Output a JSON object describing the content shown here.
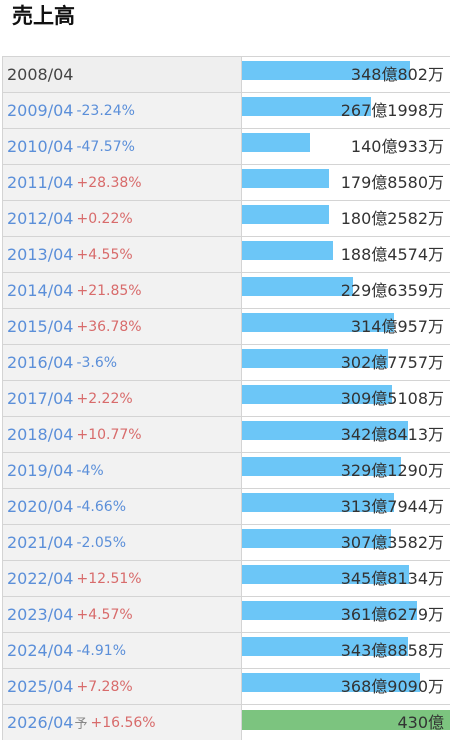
{
  "title": "売上高",
  "colors": {
    "bar": "#6cc6f7",
    "forecast_bar": "#7cc47f",
    "increase": "#d86b6b",
    "decrease": "#5b8fd9"
  },
  "chart_data": {
    "type": "bar",
    "orientation": "horizontal",
    "unit": "億円",
    "max_value": 430,
    "rows": [
      {
        "year": "2008/04",
        "change": "",
        "forecast_mark": "",
        "value_label": "348億802万",
        "value": 348.08
      },
      {
        "year": "2009/04",
        "change": "-23.24%",
        "forecast_mark": "",
        "value_label": "267億1998万",
        "value": 267.2
      },
      {
        "year": "2010/04",
        "change": "-47.57%",
        "forecast_mark": "",
        "value_label": "140億933万",
        "value": 140.09
      },
      {
        "year": "2011/04",
        "change": "+28.38%",
        "forecast_mark": "",
        "value_label": "179億8580万",
        "value": 179.86
      },
      {
        "year": "2012/04",
        "change": "+0.22%",
        "forecast_mark": "",
        "value_label": "180億2582万",
        "value": 180.26
      },
      {
        "year": "2013/04",
        "change": "+4.55%",
        "forecast_mark": "",
        "value_label": "188億4574万",
        "value": 188.46
      },
      {
        "year": "2014/04",
        "change": "+21.85%",
        "forecast_mark": "",
        "value_label": "229億6359万",
        "value": 229.64
      },
      {
        "year": "2015/04",
        "change": "+36.78%",
        "forecast_mark": "",
        "value_label": "314億957万",
        "value": 314.1
      },
      {
        "year": "2016/04",
        "change": "-3.6%",
        "forecast_mark": "",
        "value_label": "302億7757万",
        "value": 302.78
      },
      {
        "year": "2017/04",
        "change": "+2.22%",
        "forecast_mark": "",
        "value_label": "309億5108万",
        "value": 309.51
      },
      {
        "year": "2018/04",
        "change": "+10.77%",
        "forecast_mark": "",
        "value_label": "342億8413万",
        "value": 342.84
      },
      {
        "year": "2019/04",
        "change": "-4%",
        "forecast_mark": "",
        "value_label": "329億1290万",
        "value": 329.13
      },
      {
        "year": "2020/04",
        "change": "-4.66%",
        "forecast_mark": "",
        "value_label": "313億7944万",
        "value": 313.79
      },
      {
        "year": "2021/04",
        "change": "-2.05%",
        "forecast_mark": "",
        "value_label": "307億3582万",
        "value": 307.36
      },
      {
        "year": "2022/04",
        "change": "+12.51%",
        "forecast_mark": "",
        "value_label": "345億8134万",
        "value": 345.81
      },
      {
        "year": "2023/04",
        "change": "+4.57%",
        "forecast_mark": "",
        "value_label": "361億6279万",
        "value": 361.63
      },
      {
        "year": "2024/04",
        "change": "-4.91%",
        "forecast_mark": "",
        "value_label": "343億8858万",
        "value": 343.89
      },
      {
        "year": "2025/04",
        "change": "+7.28%",
        "forecast_mark": "",
        "value_label": "368億9090万",
        "value": 368.91
      },
      {
        "year": "2026/04",
        "change": "+16.56%",
        "forecast_mark": "予",
        "value_label": "430億",
        "value": 430,
        "forecast": true
      }
    ]
  }
}
